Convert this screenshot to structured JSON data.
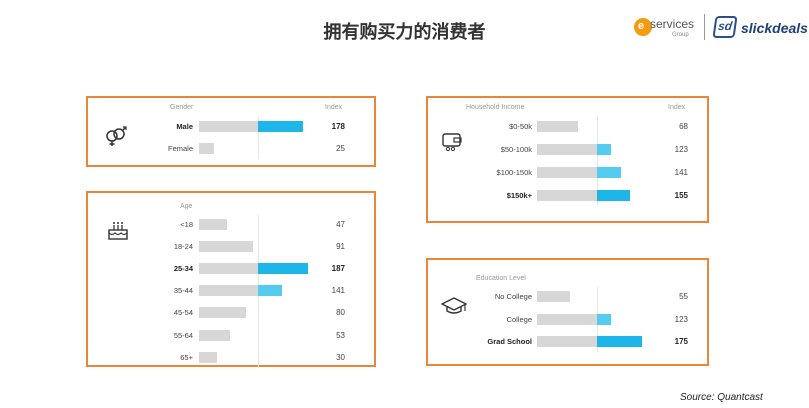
{
  "header": {
    "title": "拥有购买力的消费者",
    "logo_services": "services",
    "logo_services_sub": "Group",
    "logo_slickdeals": "slickdeals",
    "logo_sd_mark": "sd"
  },
  "source": "Source: Quantcast",
  "colors": {
    "accent": "#e8873a",
    "blue": "#1eb6e8",
    "light_blue": "#55ccef",
    "gray": "#d7d7d7"
  },
  "chart_data": [
    {
      "type": "bar",
      "name_header": "Gender",
      "value_header": "Index",
      "icon": "gender-icon",
      "categories": [
        "Male",
        "Female"
      ],
      "values": [
        178,
        25
      ],
      "highlight": [
        "Male"
      ]
    },
    {
      "type": "bar",
      "name_header": "Age",
      "value_header": "",
      "icon": "birthday-cake-icon",
      "categories": [
        "<18",
        "18-24",
        "25-34",
        "35-44",
        "45-54",
        "55-64",
        "65+"
      ],
      "values": [
        47,
        91,
        187,
        141,
        80,
        53,
        30
      ],
      "highlight": [
        "25-34"
      ]
    },
    {
      "type": "bar",
      "name_header": "Household Income",
      "value_header": "Index",
      "icon": "wallet-icon",
      "categories": [
        "$0-50k",
        "$50-100k",
        "$100-150k",
        "$150k+"
      ],
      "values": [
        68,
        123,
        141,
        155
      ],
      "highlight": [
        "$150k+"
      ]
    },
    {
      "type": "bar",
      "name_header": "Education Level",
      "value_header": "",
      "icon": "graduation-cap-icon",
      "categories": [
        "No College",
        "College",
        "Grad School"
      ],
      "values": [
        55,
        123,
        175
      ],
      "highlight": [
        "Grad School"
      ]
    }
  ]
}
